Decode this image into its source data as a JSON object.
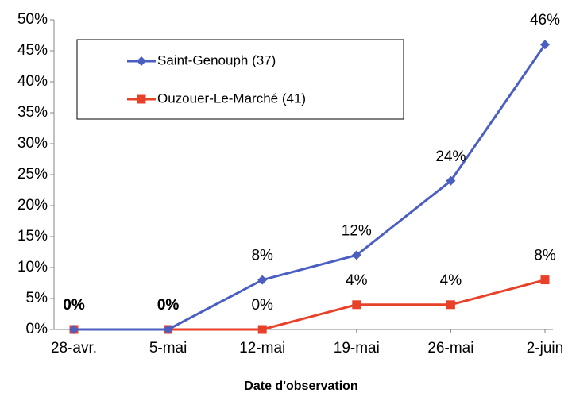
{
  "chart_data": {
    "type": "line",
    "x_label": "Date d'observation",
    "categories": [
      "28-avr.",
      "5-mai",
      "12-mai",
      "19-mai",
      "26-mai",
      "2-juin"
    ],
    "series": [
      {
        "name": "Saint-Genouph (37)",
        "color": "#4a5fc1",
        "marker": "diamond",
        "values": [
          0,
          0,
          8,
          12,
          24,
          46
        ],
        "value_labels": [
          "0%",
          "0%",
          "8%",
          "12%",
          "24%",
          "46%"
        ]
      },
      {
        "name": "Ouzouer-Le-Marché (41)",
        "color": "#e8412a",
        "marker": "square",
        "values": [
          0,
          0,
          0,
          4,
          4,
          8
        ],
        "value_labels": [
          "0%",
          "0%",
          "0%",
          "4%",
          "4%",
          "8%"
        ]
      }
    ],
    "ylim": [
      0,
      50
    ],
    "yticks": [
      {
        "value": 0,
        "label": "0%"
      },
      {
        "value": 5,
        "label": "5%"
      },
      {
        "value": 10,
        "label": "10%"
      },
      {
        "value": 15,
        "label": "15%"
      },
      {
        "value": 20,
        "label": "20%"
      },
      {
        "value": 25,
        "label": "25%"
      },
      {
        "value": 30,
        "label": "30%"
      },
      {
        "value": 35,
        "label": "35%"
      },
      {
        "value": 40,
        "label": "40%"
      },
      {
        "value": 45,
        "label": "45%"
      },
      {
        "value": 50,
        "label": "50%"
      }
    ],
    "grid": false
  }
}
